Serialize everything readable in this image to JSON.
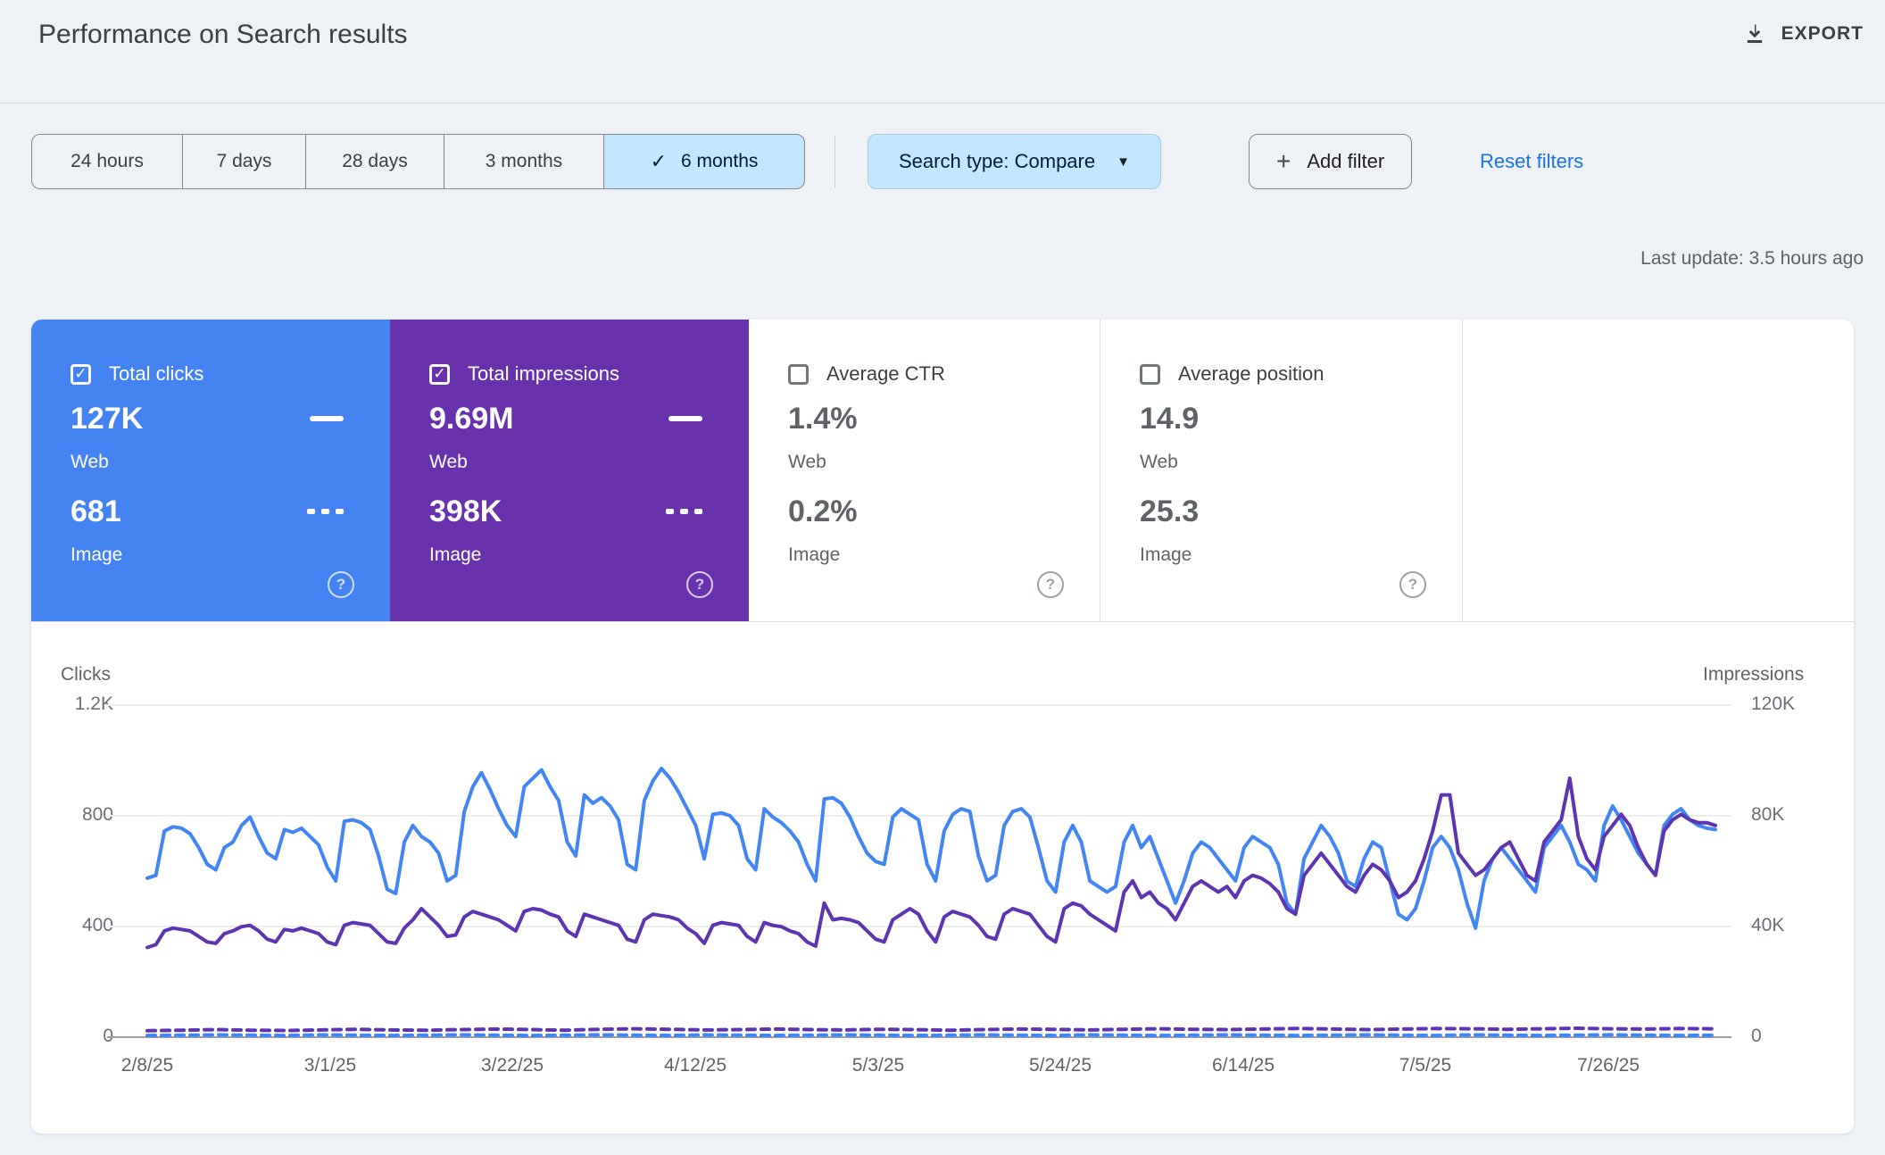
{
  "header": {
    "title": "Performance on Search results",
    "export_label": "EXPORT"
  },
  "filters": {
    "date_ranges": [
      {
        "label": "24 hours",
        "selected": false
      },
      {
        "label": "7 days",
        "selected": false
      },
      {
        "label": "28 days",
        "selected": false
      },
      {
        "label": "3 months",
        "selected": false
      },
      {
        "label": "6 months",
        "selected": true
      }
    ],
    "selected_check": "✓",
    "search_type_label": "Search type: Compare",
    "add_filter_label": "Add filter",
    "reset_label": "Reset filters"
  },
  "last_update": "Last update: 3.5 hours ago",
  "metric_cards": [
    {
      "label": "Total clicks",
      "checked": true,
      "bg": "#4583f2",
      "value1": "127K",
      "sub1": "Web",
      "value2": "681",
      "sub2": "Image"
    },
    {
      "label": "Total impressions",
      "checked": true,
      "bg": "#6932ad",
      "value1": "9.69M",
      "sub1": "Web",
      "value2": "398K",
      "sub2": "Image"
    },
    {
      "label": "Average CTR",
      "checked": false,
      "bg": "#ffffff",
      "value1": "1.4%",
      "sub1": "Web",
      "value2": "0.2%",
      "sub2": "Image"
    },
    {
      "label": "Average position",
      "checked": false,
      "bg": "#ffffff",
      "value1": "14.9",
      "sub1": "Web",
      "value2": "25.3",
      "sub2": "Image"
    }
  ],
  "chart_data": {
    "type": "line",
    "left_axis": {
      "title": "Clicks",
      "ticks": [
        "1.2K",
        "800",
        "400",
        "0"
      ],
      "max": 1200
    },
    "right_axis": {
      "title": "Impressions",
      "ticks": [
        "120K",
        "80K",
        "40K",
        "0"
      ],
      "max": 120,
      "unit": "K"
    },
    "x_ticks": [
      "2/8/25",
      "3/1/25",
      "3/22/25",
      "4/12/25",
      "5/3/25",
      "5/24/25",
      "6/14/25",
      "7/5/25",
      "7/26/25"
    ],
    "grid": true,
    "series": [
      {
        "id": "web-clicks",
        "name": "Web clicks",
        "axis": "left",
        "style": "solid",
        "color": "#4285f4",
        "values": [
          570,
          580,
          740,
          755,
          750,
          730,
          680,
          620,
          600,
          680,
          700,
          760,
          790,
          720,
          660,
          640,
          745,
          735,
          750,
          720,
          690,
          610,
          560,
          775,
          780,
          770,
          745,
          650,
          530,
          515,
          700,
          760,
          720,
          700,
          660,
          560,
          580,
          810,
          900,
          950,
          890,
          820,
          760,
          720,
          900,
          930,
          960,
          900,
          850,
          700,
          650,
          870,
          840,
          860,
          830,
          780,
          620,
          600,
          850,
          920,
          965,
          930,
          880,
          820,
          760,
          640,
          800,
          805,
          795,
          760,
          640,
          600,
          820,
          790,
          770,
          740,
          700,
          620,
          560,
          855,
          860,
          840,
          790,
          720,
          660,
          630,
          620,
          790,
          820,
          800,
          780,
          620,
          560,
          740,
          800,
          820,
          810,
          650,
          560,
          580,
          760,
          810,
          820,
          790,
          680,
          560,
          520,
          700,
          760,
          700,
          560,
          540,
          520,
          540,
          700,
          760,
          680,
          720,
          640,
          560,
          480,
          560,
          660,
          700,
          680,
          640,
          600,
          560,
          680,
          720,
          700,
          680,
          620,
          480,
          440,
          640,
          700,
          760,
          720,
          660,
          560,
          540,
          640,
          700,
          680,
          560,
          440,
          420,
          460,
          560,
          680,
          720,
          680,
          600,
          480,
          390,
          560,
          640,
          680,
          640,
          600,
          560,
          520,
          680,
          720,
          760,
          700,
          620,
          600,
          560,
          760,
          830,
          780,
          720,
          660,
          620,
          580,
          760,
          800,
          820,
          780,
          760,
          750,
          745
        ]
      },
      {
        "id": "web-impressions",
        "name": "Web impressions",
        "axis": "right",
        "style": "solid",
        "color": "#5e35b1",
        "values": [
          32,
          33,
          38,
          39,
          38.5,
          38,
          36,
          34,
          33.5,
          37,
          38,
          39.5,
          40,
          38,
          35,
          34,
          38.5,
          38,
          39,
          38,
          37,
          34,
          33,
          40,
          41,
          40.5,
          40,
          37,
          34,
          33.5,
          39,
          42,
          46,
          43,
          40,
          36,
          36.5,
          43,
          45,
          44,
          43,
          42,
          40,
          38,
          45,
          46,
          45.5,
          44,
          43,
          38,
          36,
          44,
          43,
          42,
          41,
          40,
          35,
          34,
          42,
          44,
          43.5,
          43,
          42,
          39,
          37,
          33.5,
          40,
          41,
          40.5,
          40,
          36,
          34,
          41,
          40,
          39.5,
          38,
          37,
          34,
          32.5,
          48,
          42,
          42.5,
          42,
          41,
          38,
          35,
          34,
          42,
          44,
          46,
          44,
          38,
          34,
          43,
          45,
          44,
          43,
          40,
          36,
          35,
          44,
          46,
          45,
          44,
          40,
          36,
          34,
          46,
          48,
          47,
          44,
          42,
          40,
          38,
          52,
          56,
          50,
          52,
          48,
          46,
          42,
          48,
          54,
          56,
          54,
          52,
          54,
          50,
          56,
          58,
          57,
          55,
          52,
          46,
          44,
          58,
          62,
          66,
          62,
          58,
          54,
          52,
          58,
          62,
          60,
          56,
          50,
          52,
          56,
          64,
          74,
          87,
          87,
          66,
          62,
          58,
          60,
          64,
          68,
          70,
          64,
          58,
          56,
          70,
          74,
          78,
          93,
          72,
          64,
          60,
          72,
          76,
          80,
          76,
          68,
          62,
          58,
          74,
          78,
          80,
          78,
          77,
          77,
          76
        ]
      },
      {
        "id": "image-clicks",
        "name": "Image clicks",
        "axis": "left",
        "style": "dashed",
        "color": "#4285f4",
        "values": [
          3,
          4,
          5,
          4,
          3,
          5,
          4,
          3,
          4,
          5,
          4,
          3,
          4,
          5,
          4,
          3,
          5,
          4,
          3,
          4,
          5,
          4,
          3,
          4,
          5,
          4,
          3,
          5,
          4,
          3,
          4,
          5,
          4,
          3,
          4,
          5,
          4,
          3,
          5,
          4,
          3,
          4,
          5,
          4,
          3,
          4
        ]
      },
      {
        "id": "image-impressions",
        "name": "Image impressions",
        "axis": "right",
        "style": "dashed",
        "color": "#5e35b1",
        "values": [
          2.0,
          2.2,
          2.4,
          2.2,
          2.1,
          2.3,
          2.5,
          2.3,
          2.2,
          2.4,
          2.6,
          2.4,
          2.2,
          2.5,
          2.7,
          2.5,
          2.3,
          2.4,
          2.6,
          2.4,
          2.3,
          2.5,
          2.4,
          2.2,
          2.4,
          2.6,
          2.5,
          2.3,
          2.5,
          2.7,
          2.5,
          2.4,
          2.6,
          2.8,
          2.6,
          2.4,
          2.6,
          2.8,
          2.7,
          2.5,
          2.7,
          2.9,
          2.7,
          2.6,
          2.8,
          2.7
        ]
      }
    ]
  }
}
